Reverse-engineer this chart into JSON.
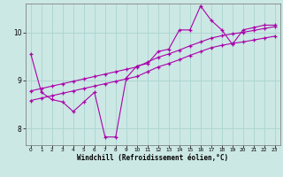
{
  "title": "",
  "xlabel": "Windchill (Refroidissement éolien,°C)",
  "ylabel": "",
  "bg_color": "#cce8e4",
  "line_color": "#aa00aa",
  "grid_color": "#aad4d0",
  "xlim": [
    -0.5,
    23.5
  ],
  "ylim": [
    7.65,
    10.6
  ],
  "yticks": [
    8,
    9,
    10
  ],
  "xticks": [
    0,
    1,
    2,
    3,
    4,
    5,
    6,
    7,
    8,
    9,
    10,
    11,
    12,
    13,
    14,
    15,
    16,
    17,
    18,
    19,
    20,
    21,
    22,
    23
  ],
  "jagged_x": [
    0,
    1,
    2,
    3,
    4,
    5,
    6,
    7,
    8,
    9,
    10,
    11,
    12,
    13,
    14,
    15,
    16,
    17,
    18,
    19,
    20,
    21,
    22,
    23
  ],
  "jagged_y": [
    9.55,
    8.75,
    8.6,
    8.55,
    8.35,
    8.55,
    8.75,
    7.82,
    7.82,
    9.05,
    9.3,
    9.35,
    9.6,
    9.65,
    10.05,
    10.05,
    10.55,
    10.25,
    10.05,
    9.75,
    10.05,
    10.1,
    10.15,
    10.15
  ],
  "upper_x": [
    0,
    1,
    2,
    3,
    4,
    5,
    6,
    7,
    8,
    9,
    10,
    11,
    12,
    13,
    14,
    15,
    16,
    17,
    18,
    19,
    20,
    21,
    22,
    23
  ],
  "upper_y": [
    8.78,
    8.83,
    8.88,
    8.93,
    8.98,
    9.03,
    9.08,
    9.13,
    9.18,
    9.23,
    9.28,
    9.38,
    9.48,
    9.55,
    9.63,
    9.72,
    9.8,
    9.88,
    9.93,
    9.97,
    10.0,
    10.04,
    10.08,
    10.12
  ],
  "lower_x": [
    0,
    1,
    2,
    3,
    4,
    5,
    6,
    7,
    8,
    9,
    10,
    11,
    12,
    13,
    14,
    15,
    16,
    17,
    18,
    19,
    20,
    21,
    22,
    23
  ],
  "lower_y": [
    8.58,
    8.63,
    8.68,
    8.73,
    8.78,
    8.83,
    8.88,
    8.93,
    8.98,
    9.03,
    9.08,
    9.18,
    9.28,
    9.35,
    9.43,
    9.52,
    9.6,
    9.68,
    9.73,
    9.77,
    9.8,
    9.84,
    9.88,
    9.92
  ]
}
